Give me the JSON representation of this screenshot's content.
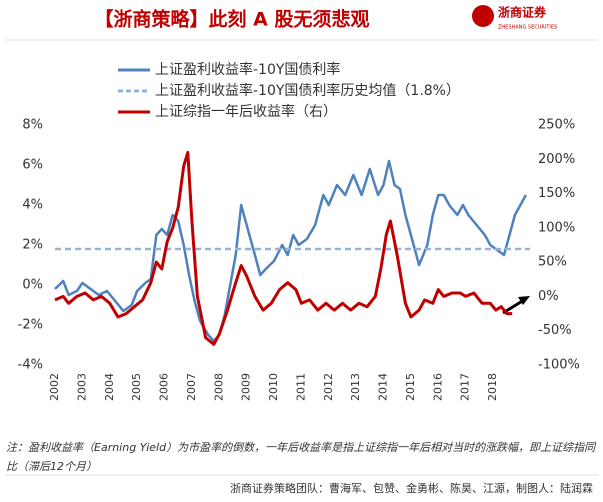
{
  "header": {
    "title": "【浙商策略】此刻 A 股无须悲观",
    "logo": "浙商证券",
    "logo_sub": "ZHESHANG SECURITIES"
  },
  "chart_data": {
    "type": "line",
    "xlim": [
      2002,
      2019.35
    ],
    "xticks": [
      2002,
      2003,
      2004,
      2005,
      2006,
      2007,
      2008,
      2009,
      2010,
      2011,
      2012,
      2013,
      2014,
      2015,
      2016,
      2017,
      2018
    ],
    "ylim": [
      -4,
      8
    ],
    "yticks": [
      {
        "value": -4,
        "label": "-4%"
      },
      {
        "value": -2,
        "label": "-2%"
      },
      {
        "value": 0,
        "label": "0%"
      },
      {
        "value": 2,
        "label": "2%"
      },
      {
        "value": 4,
        "label": "4%"
      },
      {
        "value": 6,
        "label": "6%"
      },
      {
        "value": 8,
        "label": "8%"
      }
    ],
    "y2lim": [
      -100,
      250
    ],
    "y2ticks": [
      {
        "value": -100,
        "label": "-100%"
      },
      {
        "value": -50,
        "label": "-50%"
      },
      {
        "value": 0,
        "label": "0%"
      },
      {
        "value": 50,
        "label": "50%"
      },
      {
        "value": 100,
        "label": "100%"
      },
      {
        "value": 150,
        "label": "150%"
      },
      {
        "value": 200,
        "label": "200%"
      },
      {
        "value": 250,
        "label": "250%"
      }
    ],
    "series": [
      {
        "name": "上证盈利收益率-10Y国债利率",
        "color": "#4f81bd",
        "x": [
          2002.0,
          2002.3,
          2002.5,
          2002.8,
          2003.0,
          2003.3,
          2003.6,
          2003.9,
          2004.2,
          2004.5,
          2004.8,
          2005.0,
          2005.3,
          2005.5,
          2005.7,
          2005.9,
          2006.1,
          2006.3,
          2006.5,
          2006.7,
          2006.9,
          2007.1,
          2007.3,
          2007.6,
          2007.8,
          2008.0,
          2008.2,
          2008.4,
          2008.6,
          2008.8,
          2008.9,
          2009.1,
          2009.3,
          2009.5,
          2009.7,
          2010.0,
          2010.3,
          2010.5,
          2010.7,
          2010.9,
          2011.2,
          2011.5,
          2011.8,
          2012.0,
          2012.3,
          2012.6,
          2012.9,
          2013.2,
          2013.5,
          2013.8,
          2014.0,
          2014.2,
          2014.4,
          2014.6,
          2014.8,
          2015.0,
          2015.3,
          2015.6,
          2015.8,
          2016.0,
          2016.2,
          2016.4,
          2016.7,
          2016.9,
          2017.1,
          2017.4,
          2017.7,
          2017.9,
          2018.1,
          2018.4,
          2018.6,
          2018.8,
          2019.0,
          2019.2
        ],
        "values": [
          -0.2,
          0.2,
          -0.5,
          -0.3,
          0.1,
          -0.2,
          -0.5,
          -0.3,
          -0.8,
          -1.3,
          -1.0,
          -0.3,
          0.1,
          0.3,
          2.5,
          2.8,
          2.5,
          3.5,
          3.2,
          2.0,
          0.5,
          -0.8,
          -1.8,
          -2.5,
          -2.8,
          -2.5,
          -1.5,
          0.0,
          1.5,
          4.0,
          3.5,
          2.5,
          1.5,
          0.5,
          0.8,
          1.2,
          2.0,
          1.5,
          2.5,
          2.0,
          2.3,
          3.0,
          4.5,
          4.0,
          5.0,
          4.5,
          5.5,
          4.5,
          5.8,
          4.5,
          5.0,
          6.2,
          5.0,
          4.8,
          3.5,
          2.5,
          1.0,
          2.0,
          3.5,
          4.5,
          4.5,
          4.0,
          3.5,
          4.0,
          3.5,
          3.0,
          2.5,
          2.0,
          1.8,
          1.5,
          2.5,
          3.5,
          4.0,
          4.5
        ]
      },
      {
        "name": "上证盈利收益率-10Y国债利率历史均值（1.8%）",
        "color": "#95b3d7",
        "dashed": true,
        "value": 1.8
      },
      {
        "name": "上证综指一年后收益率（右）",
        "color": "#c00000",
        "axis": "y2",
        "x": [
          2002.0,
          2002.3,
          2002.5,
          2002.8,
          2003.1,
          2003.4,
          2003.7,
          2004.0,
          2004.3,
          2004.6,
          2004.9,
          2005.2,
          2005.5,
          2005.7,
          2005.9,
          2006.1,
          2006.3,
          2006.5,
          2006.7,
          2006.85,
          2007.0,
          2007.2,
          2007.5,
          2007.8,
          2008.0,
          2008.3,
          2008.6,
          2008.8,
          2009.0,
          2009.3,
          2009.6,
          2009.9,
          2010.2,
          2010.5,
          2010.8,
          2011.0,
          2011.3,
          2011.6,
          2011.9,
          2012.2,
          2012.5,
          2012.8,
          2013.1,
          2013.4,
          2013.7,
          2013.9,
          2014.1,
          2014.25,
          2014.5,
          2014.8,
          2015.0,
          2015.3,
          2015.5,
          2015.8,
          2016.0,
          2016.2,
          2016.5,
          2016.8,
          2017.0,
          2017.3,
          2017.6,
          2017.9,
          2018.1,
          2018.3,
          2018.5,
          2018.7
        ],
        "values": [
          -5,
          0,
          -10,
          0,
          5,
          -5,
          0,
          -10,
          -30,
          -25,
          -15,
          -5,
          20,
          50,
          40,
          80,
          100,
          130,
          190,
          210,
          110,
          0,
          -60,
          -70,
          -55,
          -20,
          20,
          45,
          30,
          0,
          -20,
          -10,
          10,
          20,
          10,
          -10,
          -5,
          -20,
          -10,
          -20,
          -10,
          -20,
          -10,
          -15,
          0,
          40,
          90,
          110,
          60,
          -10,
          -30,
          -20,
          -5,
          -10,
          10,
          0,
          5,
          5,
          0,
          5,
          -10,
          -10,
          -20,
          -15,
          -25,
          -25
        ]
      }
    ]
  },
  "note": "注：盈利收益率（Earning Yield）为市盈率的倒数，一年后收益率是指上证综指一年后相对当时的涨跌幅，即上证综指同比（滞后12个月）",
  "footer": "浙商证券策略团队：曹海军、包赞、金勇彬、陈昊、江源，制图人：陆润霖"
}
